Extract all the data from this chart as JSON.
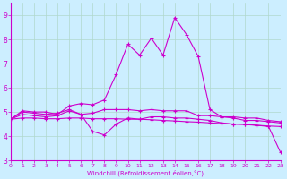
{
  "xlabel": "Windchill (Refroidissement éolien,°C)",
  "background_color": "#cceeff",
  "grid_color": "#b0d8cc",
  "line_color": "#cc00cc",
  "xlim": [
    0,
    23
  ],
  "ylim": [
    3,
    9.5
  ],
  "yticks": [
    3,
    4,
    5,
    6,
    7,
    8,
    9
  ],
  "xticks": [
    0,
    1,
    2,
    3,
    4,
    5,
    6,
    7,
    8,
    9,
    10,
    11,
    12,
    13,
    14,
    15,
    16,
    17,
    18,
    19,
    20,
    21,
    22,
    23
  ],
  "series": [
    [
      4.7,
      5.05,
      5.0,
      5.0,
      4.9,
      5.25,
      5.35,
      5.3,
      5.5,
      6.55,
      7.8,
      7.35,
      8.05,
      7.35,
      8.9,
      8.2,
      7.3,
      5.1,
      4.8,
      4.75,
      4.65,
      4.65,
      4.6,
      4.55
    ],
    [
      4.7,
      4.9,
      4.85,
      4.8,
      4.85,
      5.05,
      4.9,
      4.2,
      4.05,
      4.5,
      4.75,
      4.7,
      4.8,
      4.8,
      4.75,
      4.75,
      4.7,
      4.65,
      4.55,
      4.5,
      4.5,
      4.45,
      4.4,
      3.35
    ],
    [
      4.7,
      5.0,
      4.95,
      4.9,
      4.95,
      5.1,
      4.9,
      4.95,
      5.1,
      5.1,
      5.1,
      5.05,
      5.1,
      5.05,
      5.05,
      5.05,
      4.85,
      4.85,
      4.8,
      4.8,
      4.75,
      4.75,
      4.65,
      4.6
    ],
    [
      4.7,
      4.75,
      4.75,
      4.72,
      4.72,
      4.75,
      4.75,
      4.72,
      4.72,
      4.72,
      4.7,
      4.7,
      4.68,
      4.65,
      4.63,
      4.6,
      4.58,
      4.55,
      4.52,
      4.5,
      4.48,
      4.45,
      4.42,
      4.4
    ]
  ],
  "x_values": [
    0,
    1,
    2,
    3,
    4,
    5,
    6,
    7,
    8,
    9,
    10,
    11,
    12,
    13,
    14,
    15,
    16,
    17,
    18,
    19,
    20,
    21,
    22,
    23
  ]
}
